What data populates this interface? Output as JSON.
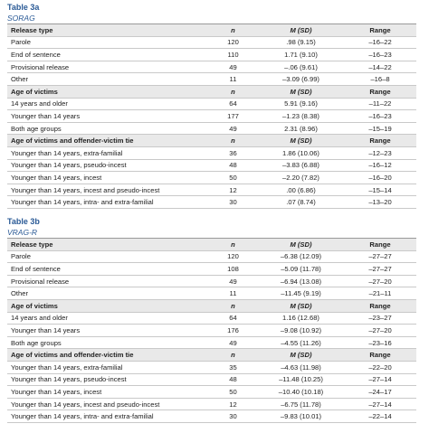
{
  "tables": [
    {
      "title": "Table 3a",
      "subtitle": "SORAG",
      "sections": [
        {
          "header": [
            "Release type",
            "n",
            "M (SD)",
            "Range"
          ],
          "rows": [
            [
              "Parole",
              "120",
              ".98 (9.15)",
              "–16–22"
            ],
            [
              "End of sentence",
              "110",
              "1.71 (9.10)",
              "–16–23"
            ],
            [
              "Provisional release",
              "49",
              "–.06 (9.61)",
              "–14–22"
            ],
            [
              "Other",
              "11",
              "–3.09 (6.99)",
              "–16–8"
            ]
          ]
        },
        {
          "header": [
            "Age of victims",
            "n",
            "M (SD)",
            "Range"
          ],
          "rows": [
            [
              "14 years and older",
              "64",
              "5.91 (9.16)",
              "–11–22"
            ],
            [
              "Younger than 14 years",
              "177",
              "–1.23 (8.38)",
              "–16–23"
            ],
            [
              "Both age groups",
              "49",
              "2.31 (8.96)",
              "–15–19"
            ]
          ]
        },
        {
          "header": [
            "Age of victims and offender-victim tie",
            "n",
            "M (SD)",
            "Range"
          ],
          "rows": [
            [
              "Younger than 14 years, extra-familial",
              "36",
              "1.86 (10.06)",
              "–12–23"
            ],
            [
              "Younger than 14 years, pseudo-incest",
              "48",
              "–3.83 (6.88)",
              "–16–12"
            ],
            [
              "Younger than 14 years, incest",
              "50",
              "–2.20 (7.82)",
              "–16–20"
            ],
            [
              "Younger than 14 years, incest and pseudo-incest",
              "12",
              ".00 (6.86)",
              "–15–14"
            ],
            [
              "Younger than 14 years, intra- and extra-familial",
              "30",
              ".07 (8.74)",
              "–13–20"
            ]
          ]
        }
      ]
    },
    {
      "title": "Table 3b",
      "subtitle": "VRAG-R",
      "sections": [
        {
          "header": [
            "Release type",
            "n",
            "M (SD)",
            "Range"
          ],
          "rows": [
            [
              "Parole",
              "120",
              "–6.38 (12.09)",
              "–27–27"
            ],
            [
              "End of sentence",
              "108",
              "–5.09 (11.78)",
              "–27–27"
            ],
            [
              "Provisional release",
              "49",
              "–6.94 (13.08)",
              "–27–20"
            ],
            [
              "Other",
              "11",
              "–11.45 (9.19)",
              "–21–11"
            ]
          ]
        },
        {
          "header": [
            "Age of victims",
            "n",
            "M (SD)",
            "Range"
          ],
          "rows": [
            [
              "14 years and older",
              "64",
              "1.16 (12.68)",
              "–23–27"
            ],
            [
              "Younger than 14 years",
              "176",
              "–9.08 (10.92)",
              "–27–20"
            ],
            [
              "Both age groups",
              "49",
              "–4.55 (11.26)",
              "–23–16"
            ]
          ]
        },
        {
          "header": [
            "Age of victims and offender-victim tie",
            "n",
            "M (SD)",
            "Range"
          ],
          "rows": [
            [
              "Younger than 14 years, extra-familial",
              "35",
              "–4.63 (11.98)",
              "–22–20"
            ],
            [
              "Younger than 14 years, pseudo-incest",
              "48",
              "–11.48 (10.25)",
              "–27–14"
            ],
            [
              "Younger than 14 years, incest",
              "50",
              "–10.40 (10.18)",
              "–24–17"
            ],
            [
              "Younger than 14 years, incest and pseudo-incest",
              "12",
              "–6.75 (11.78)",
              "–27–14"
            ],
            [
              "Younger than 14 years, intra- and extra-familial",
              "30",
              "–9.83 (10.01)",
              "–22–14"
            ]
          ]
        }
      ]
    }
  ]
}
